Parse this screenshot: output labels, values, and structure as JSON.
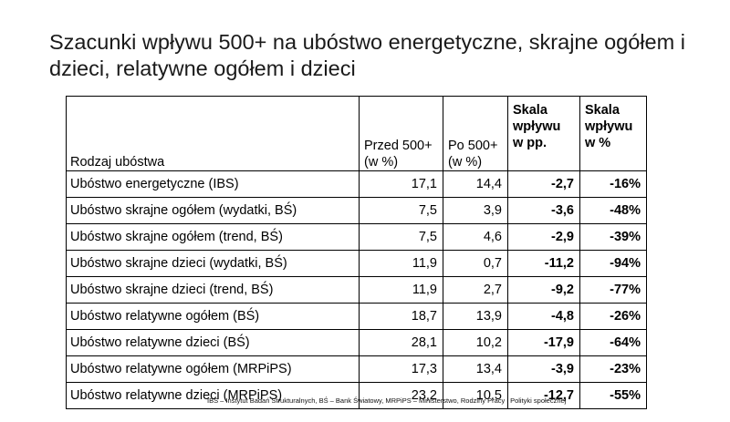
{
  "title": "Szacunki wpływu 500+ na ubóstwo energetyczne, skrajne ogółem i dzieci, relatywne ogółem i dzieci",
  "table": {
    "headers": {
      "type": "Rodzaj ubóstwa",
      "before": "Przed 500+\n(w %)",
      "after": "Po 500+\n(w %)",
      "scale_pp": "Skala\nwpływu\nw pp.",
      "scale_pct": "Skala\nwpływu\nw %"
    },
    "rows": [
      [
        "Ubóstwo energetyczne (IBS)",
        "17,1",
        "14,4",
        "-2,7",
        "-16%"
      ],
      [
        "Ubóstwo skrajne ogółem (wydatki, BŚ)",
        "7,5",
        "3,9",
        "-3,6",
        "-48%"
      ],
      [
        "Ubóstwo skrajne ogółem (trend,  BŚ)",
        "7,5",
        "4,6",
        "-2,9",
        "-39%"
      ],
      [
        "Ubóstwo skrajne dzieci (wydatki, BŚ)",
        "11,9",
        "0,7",
        "-11,2",
        "-94%"
      ],
      [
        "Ubóstwo skrajne dzieci (trend, BŚ)",
        "11,9",
        "2,7",
        "-9,2",
        "-77%"
      ],
      [
        "Ubóstwo relatywne ogółem (BŚ)",
        "18,7",
        "13,9",
        "-4,8",
        "-26%"
      ],
      [
        "Ubóstwo relatywne dzieci (BŚ)",
        "28,1",
        "10,2",
        "-17,9",
        "-64%"
      ],
      [
        "Ubóstwo relatywne ogółem (MRPiPS)",
        "17,3",
        "13,4",
        "-3,9",
        "-23%"
      ],
      [
        "Ubóstwo relatywne dzieci (MRPiPS)",
        "23,2",
        "10,5",
        "-12,7",
        "-55%"
      ]
    ]
  },
  "footnote": "IBS – Instytut Badań Strukturalnych, BŚ – Bank Światowy, MRPiPS – Ministerstwo, Rodziny Pracy i Polityki społecznej"
}
